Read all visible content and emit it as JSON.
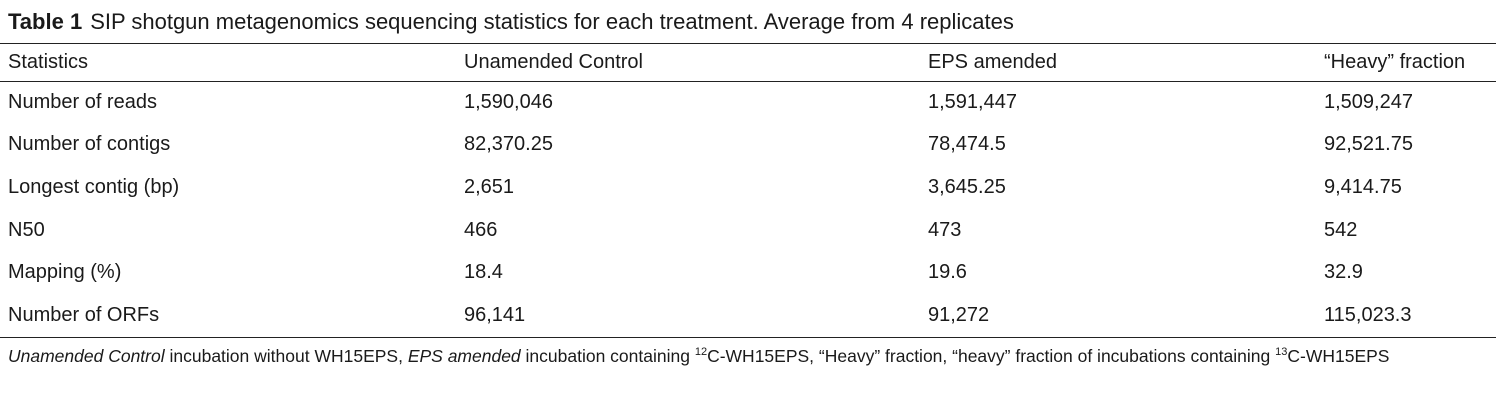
{
  "caption": {
    "label": "Table 1",
    "text": "SIP shotgun metagenomics sequencing statistics for each treatment. Average from 4 replicates"
  },
  "table": {
    "headers": [
      "Statistics",
      "Unamended Control",
      "EPS amended",
      "“Heavy” fraction"
    ],
    "rows": [
      [
        "Number of reads",
        "1,590,046",
        "1,591,447",
        "1,509,247"
      ],
      [
        "Number of contigs",
        "82,370.25",
        "78,474.5",
        "92,521.75"
      ],
      [
        "Longest contig (bp)",
        "2,651",
        "3,645.25",
        "9,414.75"
      ],
      [
        "N50",
        "466",
        "473",
        "542"
      ],
      [
        "Mapping (%)",
        "18.4",
        "19.6",
        "32.9"
      ],
      [
        "Number of ORFs",
        "96,141",
        "91,272",
        "115,023.3"
      ]
    ]
  },
  "footnote": {
    "t1_italic": "Unamended Control",
    "t2": " incubation without WH15EPS, ",
    "t3_italic": "EPS amended",
    "t4": " incubation containing ",
    "sup1": "12",
    "t5": "C-WH15EPS, “Heavy” fraction, “heavy” fraction of incubations containing ",
    "sup2": "13",
    "t6": "C-WH15EPS"
  }
}
